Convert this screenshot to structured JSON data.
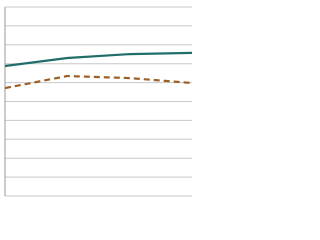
{
  "chart_data": {
    "type": "line",
    "categories": [
      null,
      null,
      null,
      null
    ],
    "series": [
      {
        "color": "#1f6e6a",
        "dash": false,
        "values": [
          6.88,
          7.3,
          7.51,
          7.57
        ]
      },
      {
        "color": "#9c5f25",
        "dash": true,
        "values": [
          5.71,
          6.35,
          6.24,
          5.98
        ]
      }
    ],
    "ylim": [
      0,
      10
    ],
    "yticks": [
      0,
      1,
      2,
      3,
      4,
      5,
      6,
      7,
      8,
      9,
      10
    ],
    "grid": true
  }
}
